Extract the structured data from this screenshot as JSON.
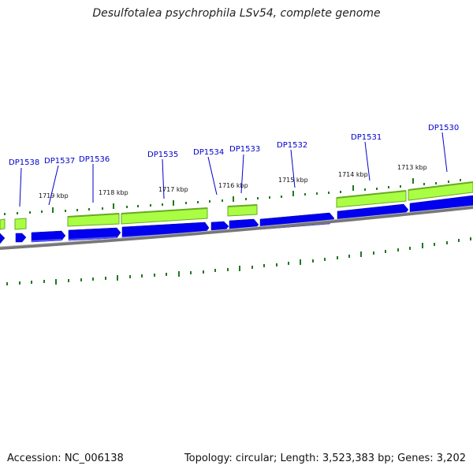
{
  "header": {
    "title": "Desulfotalea psychrophila LSv54, complete genome"
  },
  "footer": {
    "accession": "Accession: NC_006138",
    "stats": "Topology: circular; Length: 3,523,383 bp; Genes: 3,202"
  },
  "map": {
    "gene_labels": [
      "DP1538",
      "DP1537",
      "DP1536",
      "DP1535",
      "DP1534",
      "DP1533",
      "DP1532",
      "DP1531",
      "DP1530"
    ],
    "kbp_labels": [
      "1719 kbp",
      "1718 kbp",
      "1717 kbp",
      "1716 kbp",
      "1715 kbp",
      "1714 kbp",
      "1713 kbp"
    ]
  },
  "colors": {
    "cds_blue": "#0000ee",
    "feature_green": "#aaff44",
    "feature_green_edge": "#66aa22",
    "tick_green": "#227722",
    "backbone_grey": "#888888",
    "label_blue": "#0000cc"
  }
}
